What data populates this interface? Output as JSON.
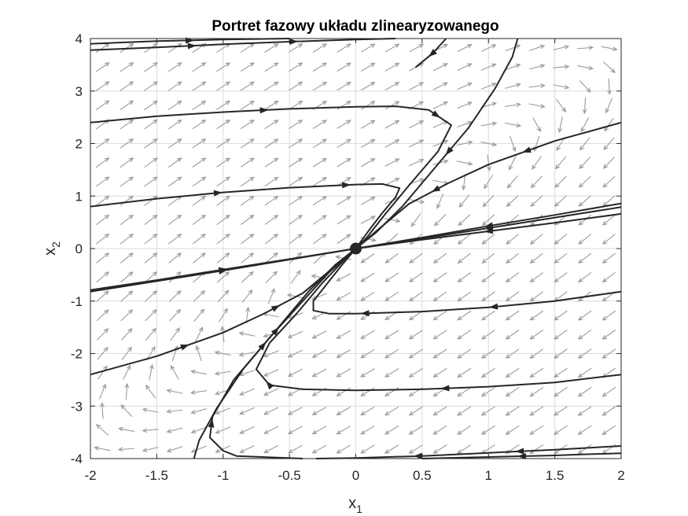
{
  "chart_data": {
    "type": "phase-portrait",
    "title": "Portret fazowy układu zlinearyzowanego",
    "xlabel": {
      "base": "x",
      "sub": "1"
    },
    "ylabel": {
      "base": "x",
      "sub": "2"
    },
    "xlim": [
      -2,
      2
    ],
    "ylim": [
      -4,
      4
    ],
    "xticks": [
      "-2",
      "-1.5",
      "-1",
      "-0.5",
      "0",
      "0.5",
      "1",
      "1.5",
      "2"
    ],
    "yticks": [
      "-4",
      "-3",
      "-2",
      "-1",
      "0",
      "1",
      "2",
      "3",
      "4"
    ],
    "grid": true,
    "equilibrium": {
      "x": 0,
      "y": 0
    },
    "colors": {
      "trajectory": "#262626",
      "quiver": "#9a9a9a",
      "grid": "#dcdcdc",
      "axes": "#262626"
    },
    "trajectories": [
      {
        "points": [
          [
            -2,
            3.78
          ],
          [
            -1.5,
            3.83
          ],
          [
            -1,
            3.89
          ],
          [
            -0.5,
            3.94
          ],
          [
            0,
            3.98
          ],
          [
            0.3,
            4.0
          ]
        ]
      },
      {
        "points": [
          [
            -2,
            3.9
          ],
          [
            -1.8,
            3.92
          ],
          [
            -1.5,
            3.95
          ],
          [
            -1,
            3.98
          ],
          [
            -0.5,
            4.0
          ]
        ]
      },
      {
        "points": [
          [
            -2,
            2.4
          ],
          [
            -1.5,
            2.52
          ],
          [
            -1,
            2.6
          ],
          [
            -0.5,
            2.66
          ],
          [
            0,
            2.7
          ],
          [
            0.3,
            2.71
          ],
          [
            0.55,
            2.64
          ],
          [
            0.72,
            2.35
          ],
          [
            0.62,
            1.85
          ],
          [
            0.4,
            1.2
          ],
          [
            0.22,
            0.65
          ],
          [
            0.08,
            0.2
          ],
          [
            0,
            0
          ]
        ]
      },
      {
        "points": [
          [
            -2,
            0.8
          ],
          [
            -1.5,
            0.95
          ],
          [
            -1,
            1.07
          ],
          [
            -0.5,
            1.16
          ],
          [
            0,
            1.22
          ],
          [
            0.2,
            1.23
          ],
          [
            0.33,
            1.15
          ],
          [
            0.3,
            0.98
          ],
          [
            0.2,
            0.68
          ],
          [
            0.1,
            0.35
          ],
          [
            0,
            0
          ]
        ]
      },
      {
        "points": [
          [
            2,
            0.86
          ],
          [
            1.5,
            0.64
          ],
          [
            1,
            0.43
          ],
          [
            0.5,
            0.21
          ],
          [
            0,
            0
          ]
        ]
      },
      {
        "points": [
          [
            2,
            0.79
          ],
          [
            1.5,
            0.59
          ],
          [
            1,
            0.39
          ],
          [
            0.5,
            0.19
          ],
          [
            0,
            0
          ]
        ]
      },
      {
        "points": [
          [
            2,
            0.66
          ],
          [
            1.5,
            0.49
          ],
          [
            1,
            0.33
          ],
          [
            0.5,
            0.17
          ],
          [
            0,
            0
          ]
        ]
      },
      {
        "points": [
          [
            -2,
            -0.82
          ],
          [
            -1.5,
            -0.62
          ],
          [
            -1,
            -0.42
          ],
          [
            -0.5,
            -0.21
          ],
          [
            0,
            0
          ]
        ]
      },
      {
        "points": [
          [
            -2,
            -0.79
          ],
          [
            -1.5,
            -0.6
          ],
          [
            -1,
            -0.4
          ],
          [
            -0.5,
            -0.2
          ],
          [
            0,
            0
          ]
        ]
      },
      {
        "points": [
          [
            2,
            2.4
          ],
          [
            1.5,
            2.05
          ],
          [
            1,
            1.6
          ],
          [
            0.7,
            1.25
          ],
          [
            0.4,
            0.85
          ],
          [
            0.2,
            0.43
          ],
          [
            0,
            0
          ]
        ]
      },
      {
        "points": [
          [
            1.22,
            4.0
          ],
          [
            1.18,
            3.65
          ],
          [
            1.05,
            3.05
          ],
          [
            0.85,
            2.3
          ],
          [
            0.6,
            1.55
          ],
          [
            0.35,
            0.8
          ],
          [
            0.15,
            0.3
          ],
          [
            0,
            0
          ]
        ]
      },
      {
        "points": [
          [
            0.68,
            4.0
          ],
          [
            0.58,
            3.72
          ],
          [
            0.45,
            3.45
          ]
        ]
      },
      {
        "points": [
          [
            2,
            -0.82
          ],
          [
            1.5,
            -1.0
          ],
          [
            1,
            -1.12
          ],
          [
            0.5,
            -1.2
          ],
          [
            0,
            -1.24
          ],
          [
            -0.2,
            -1.24
          ],
          [
            -0.32,
            -1.18
          ],
          [
            -0.32,
            -1.0
          ],
          [
            -0.22,
            -0.68
          ],
          [
            -0.1,
            -0.3
          ],
          [
            0,
            0
          ]
        ]
      },
      {
        "points": [
          [
            2,
            -2.4
          ],
          [
            1.5,
            -2.55
          ],
          [
            1,
            -2.63
          ],
          [
            0.5,
            -2.68
          ],
          [
            0,
            -2.7
          ],
          [
            -0.4,
            -2.68
          ],
          [
            -0.65,
            -2.6
          ],
          [
            -0.75,
            -2.3
          ],
          [
            -0.65,
            -1.8
          ],
          [
            -0.45,
            -1.25
          ],
          [
            -0.25,
            -0.65
          ],
          [
            -0.1,
            -0.25
          ],
          [
            0,
            0
          ]
        ]
      },
      {
        "points": [
          [
            -2,
            -2.4
          ],
          [
            -1.5,
            -2.05
          ],
          [
            -1,
            -1.6
          ],
          [
            -0.7,
            -1.25
          ],
          [
            -0.4,
            -0.85
          ],
          [
            -0.2,
            -0.43
          ],
          [
            0,
            0
          ]
        ]
      },
      {
        "points": [
          [
            -1.22,
            -4.0
          ],
          [
            -1.18,
            -3.65
          ],
          [
            -1.05,
            -3.05
          ],
          [
            -0.85,
            -2.3
          ],
          [
            -0.6,
            -1.55
          ],
          [
            -0.35,
            -0.8
          ],
          [
            -0.15,
            -0.3
          ],
          [
            0,
            0
          ]
        ]
      },
      {
        "points": [
          [
            -0.4,
            -4.0
          ],
          [
            -0.9,
            -3.95
          ],
          [
            -1.0,
            -3.85
          ],
          [
            -1.1,
            -3.6
          ],
          [
            -1.08,
            -3.2
          ],
          [
            -0.92,
            -2.5
          ],
          [
            -0.65,
            -1.7
          ],
          [
            -0.4,
            -1.0
          ],
          [
            -0.2,
            -0.45
          ],
          [
            0,
            0
          ]
        ]
      },
      {
        "points": [
          [
            2,
            -3.76
          ],
          [
            1.5,
            -3.83
          ],
          [
            1,
            -3.89
          ],
          [
            0.5,
            -3.95
          ],
          [
            0,
            -3.99
          ],
          [
            -0.3,
            -4.0
          ]
        ]
      },
      {
        "points": [
          [
            2,
            -3.9
          ],
          [
            1.7,
            -3.92
          ],
          [
            1.5,
            -3.94
          ],
          [
            1,
            -3.97
          ],
          [
            0.5,
            -4.0
          ]
        ]
      }
    ]
  }
}
